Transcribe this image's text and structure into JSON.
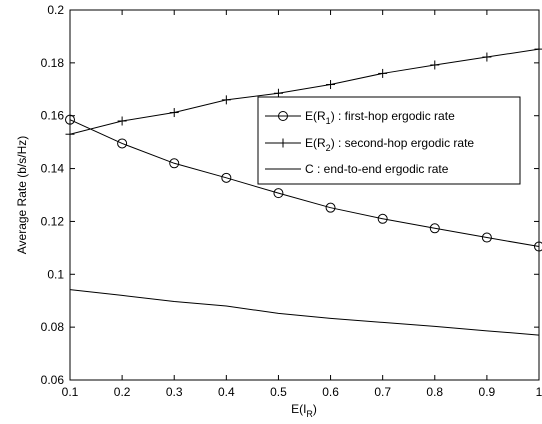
{
  "chart_data": {
    "type": "line",
    "xlabel": "E(I",
    "xlabel_sub": "R",
    "xlabel_tail": ")",
    "ylabel": "Average Rate (b/s/Hz)",
    "xlim": [
      0.1,
      1
    ],
    "ylim": [
      0.06,
      0.2
    ],
    "xticks": [
      "0.1",
      "0.2",
      "0.3",
      "0.4",
      "0.5",
      "0.6",
      "0.7",
      "0.8",
      "0.9",
      "1"
    ],
    "yticks": [
      "0.06",
      "0.08",
      "0.1",
      "0.12",
      "0.14",
      "0.16",
      "0.18",
      "0.2"
    ],
    "xtick_values": [
      0.1,
      0.2,
      0.3,
      0.4,
      0.5,
      0.6,
      0.7,
      0.8,
      0.9,
      1.0
    ],
    "ytick_values": [
      0.06,
      0.08,
      0.1,
      0.12,
      0.14,
      0.16,
      0.18,
      0.2
    ],
    "grid": false,
    "legend_position": "right-middle",
    "series": [
      {
        "name": "E(R1) : first-hop ergodic rate",
        "legend_pre": "E(R",
        "legend_sub": "1",
        "legend_post": ") : first-hop ergodic rate",
        "marker": "circle",
        "x": [
          0.1,
          0.2,
          0.3,
          0.4,
          0.5,
          0.6,
          0.7,
          0.8,
          0.9,
          1.0
        ],
        "y": [
          0.1585,
          0.1495,
          0.142,
          0.1365,
          0.1307,
          0.1252,
          0.121,
          0.1174,
          0.1139,
          0.1105
        ]
      },
      {
        "name": "E(R2) : second-hop ergodic rate",
        "legend_pre": "E(R",
        "legend_sub": "2",
        "legend_post": ") : second-hop ergodic rate",
        "marker": "plus",
        "x": [
          0.1,
          0.2,
          0.3,
          0.4,
          0.5,
          0.6,
          0.7,
          0.8,
          0.9,
          1.0
        ],
        "y": [
          0.153,
          0.158,
          0.1612,
          0.166,
          0.1685,
          0.1718,
          0.176,
          0.1792,
          0.1822,
          0.1852
        ]
      },
      {
        "name": "C : end-to-end ergodic rate",
        "legend_pre": "C : end-to-end ergodic rate",
        "legend_sub": "",
        "legend_post": "",
        "marker": "none",
        "x": [
          0.1,
          0.2,
          0.3,
          0.4,
          0.5,
          0.6,
          0.7,
          0.8,
          0.9,
          1.0
        ],
        "y": [
          0.0942,
          0.092,
          0.0897,
          0.088,
          0.0852,
          0.0833,
          0.0818,
          0.0803,
          0.0786,
          0.077
        ]
      }
    ]
  }
}
